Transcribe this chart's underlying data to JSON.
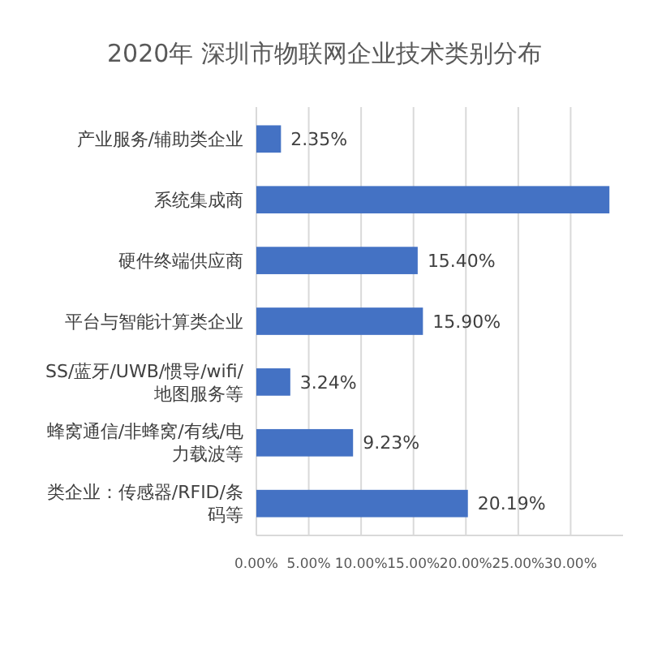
{
  "chart_data": {
    "type": "bar",
    "orientation": "horizontal",
    "title": "2020年  深圳市物联网企业技术类别分布",
    "categories": [
      "产业服务/辅助类企业",
      "系统集成商",
      "硬件终端供应商",
      "平台与智能计算类企业",
      "SS/蓝牙/UWB/惯导/wifi/地图服务等",
      "蜂窝通信/非蜂窝/有线/电力载波等",
      "类企业：传感器/RFID/条码等"
    ],
    "values": [
      2.35,
      33.7,
      15.4,
      15.9,
      3.24,
      9.23,
      20.19
    ],
    "value_labels": [
      "2.35%",
      null,
      "15.40%",
      "15.90%",
      "3.24%",
      "9.23%",
      "20.19%"
    ],
    "color": "#4472c4",
    "xlim": [
      0,
      35
    ],
    "xticks": [
      {
        "value": 0,
        "label": "0.00%"
      },
      {
        "value": 5,
        "label": "5.00%"
      },
      {
        "value": 10,
        "label": "10.00%"
      },
      {
        "value": 15,
        "label": "15.00%"
      },
      {
        "value": 20,
        "label": "20.00%"
      },
      {
        "value": 25,
        "label": "25.00%"
      },
      {
        "value": 30,
        "label": "30.00%"
      }
    ],
    "grid": "x"
  }
}
